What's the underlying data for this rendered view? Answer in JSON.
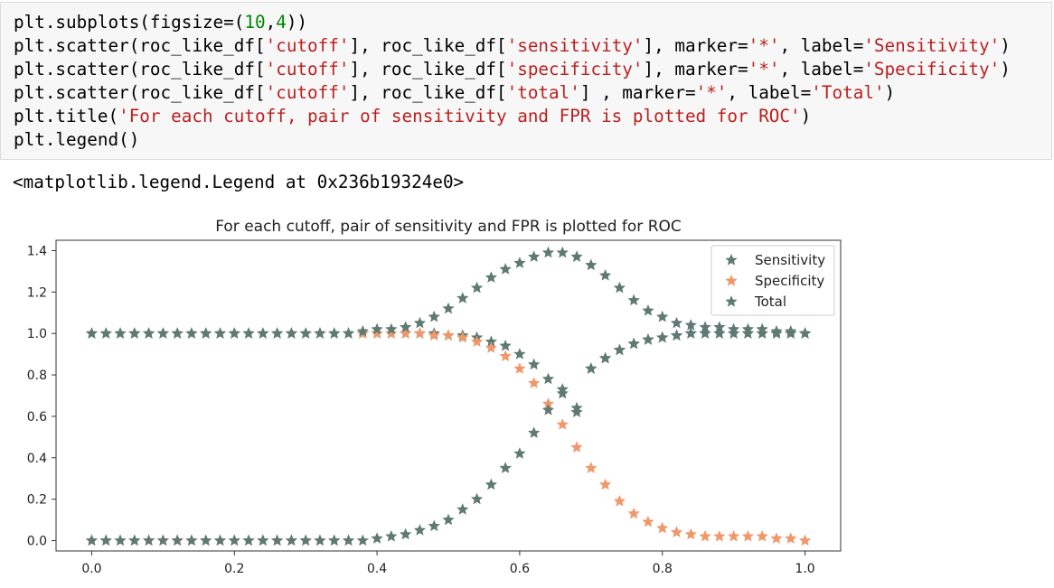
{
  "code_cell": {
    "lines": [
      [
        {
          "t": "plt.subplots(figsize=("
        },
        {
          "t": "10",
          "c": "num"
        },
        {
          "t": ","
        },
        {
          "t": "4",
          "c": "num"
        },
        {
          "t": "))"
        }
      ],
      [
        {
          "t": "plt.scatter(roc_like_df["
        },
        {
          "t": "'cutoff'",
          "c": "str"
        },
        {
          "t": "], roc_like_df["
        },
        {
          "t": "'sensitivity'",
          "c": "str"
        },
        {
          "t": "], marker="
        },
        {
          "t": "'*'",
          "c": "str"
        },
        {
          "t": ", label="
        },
        {
          "t": "'Sensitivity'",
          "c": "str"
        },
        {
          "t": ")"
        }
      ],
      [
        {
          "t": "plt.scatter(roc_like_df["
        },
        {
          "t": "'cutoff'",
          "c": "str"
        },
        {
          "t": "], roc_like_df["
        },
        {
          "t": "'specificity'",
          "c": "str"
        },
        {
          "t": "], marker="
        },
        {
          "t": "'*'",
          "c": "str"
        },
        {
          "t": ", label="
        },
        {
          "t": "'Specificity'",
          "c": "str"
        },
        {
          "t": ")"
        }
      ],
      [
        {
          "t": "plt.scatter(roc_like_df["
        },
        {
          "t": "'cutoff'",
          "c": "str"
        },
        {
          "t": "], roc_like_df["
        },
        {
          "t": "'total'",
          "c": "str"
        },
        {
          "t": "] , marker="
        },
        {
          "t": "'*'",
          "c": "str"
        },
        {
          "t": ", label="
        },
        {
          "t": "'Total'",
          "c": "str"
        },
        {
          "t": ")"
        }
      ],
      [
        {
          "t": "plt.title("
        },
        {
          "t": "'For each cutoff, pair of sensitivity and FPR is plotted for ROC'",
          "c": "str"
        },
        {
          "t": ")"
        }
      ],
      [
        {
          "t": "plt.legend()"
        }
      ]
    ]
  },
  "output": {
    "text": "<matplotlib.legend.Legend at 0x236b19324e0>"
  },
  "chart_data": {
    "type": "scatter",
    "title": "For each cutoff, pair of sensitivity and FPR is plotted for ROC",
    "xlabel": "",
    "ylabel": "",
    "xlim": [
      -0.05,
      1.05
    ],
    "ylim": [
      -0.05,
      1.45
    ],
    "xticks": [
      "0.0",
      "0.2",
      "0.4",
      "0.6",
      "0.8",
      "1.0"
    ],
    "yticks": [
      "0.0",
      "0.2",
      "0.4",
      "0.6",
      "0.8",
      "1.0",
      "1.2",
      "1.4"
    ],
    "grid": false,
    "legend_position": "top-right",
    "x": [
      0.0,
      0.02,
      0.04,
      0.06,
      0.08,
      0.1,
      0.12,
      0.14,
      0.16,
      0.18,
      0.2,
      0.22,
      0.24,
      0.26,
      0.28,
      0.3,
      0.32,
      0.34,
      0.36,
      0.38,
      0.4,
      0.42,
      0.44,
      0.46,
      0.48,
      0.5,
      0.52,
      0.54,
      0.56,
      0.58,
      0.6,
      0.62,
      0.64,
      0.66,
      0.68,
      0.7,
      0.72,
      0.74,
      0.76,
      0.78,
      0.8,
      0.82,
      0.84,
      0.86,
      0.88,
      0.9,
      0.92,
      0.94,
      0.96,
      0.98,
      1.0
    ],
    "series": [
      {
        "name": "Sensitivity",
        "color": "#5f7a73",
        "values": [
          1.0,
          1.0,
          1.0,
          1.0,
          1.0,
          1.0,
          1.0,
          1.0,
          1.0,
          1.0,
          1.0,
          1.0,
          1.0,
          1.0,
          1.0,
          1.0,
          1.0,
          1.0,
          1.0,
          1.0,
          1.0,
          1.0,
          1.0,
          1.0,
          1.0,
          0.99,
          0.99,
          0.98,
          0.96,
          0.94,
          0.9,
          0.85,
          0.78,
          0.71,
          0.64,
          0.83,
          0.88,
          0.92,
          0.95,
          0.97,
          0.98,
          0.99,
          1.0,
          1.0,
          1.0,
          1.0,
          1.0,
          1.0,
          1.0,
          1.0,
          1.0
        ]
      },
      {
        "name": "Specificity",
        "color": "#f0986a",
        "values": [
          0.0,
          0.0,
          0.0,
          0.0,
          0.0,
          0.0,
          0.0,
          0.0,
          0.0,
          0.0,
          0.0,
          0.0,
          0.0,
          0.0,
          0.0,
          0.0,
          0.0,
          0.0,
          0.0,
          1.0,
          1.0,
          1.0,
          1.0,
          1.0,
          0.99,
          0.99,
          0.98,
          0.96,
          0.93,
          0.89,
          0.83,
          0.76,
          0.66,
          0.56,
          0.45,
          0.35,
          0.27,
          0.19,
          0.13,
          0.09,
          0.06,
          0.04,
          0.03,
          0.02,
          0.02,
          0.02,
          0.02,
          0.02,
          0.01,
          0.01,
          0.0
        ]
      },
      {
        "name": "Total",
        "color": "#5f7a73",
        "values": [
          1.0,
          1.0,
          1.0,
          1.0,
          1.0,
          1.0,
          1.0,
          1.0,
          1.0,
          1.0,
          1.0,
          1.0,
          1.0,
          1.0,
          1.0,
          1.0,
          1.0,
          1.0,
          1.0,
          1.01,
          1.02,
          1.02,
          1.03,
          1.05,
          1.08,
          1.12,
          1.17,
          1.22,
          1.27,
          1.31,
          1.34,
          1.37,
          1.39,
          1.39,
          1.37,
          1.33,
          1.28,
          1.22,
          1.16,
          1.11,
          1.08,
          1.05,
          1.04,
          1.03,
          1.03,
          1.02,
          1.02,
          1.02,
          1.01,
          1.01,
          1.0
        ]
      },
      {
        "name": "",
        "color": "#5f7a73",
        "values": [
          0.0,
          0.0,
          0.0,
          0.0,
          0.0,
          0.0,
          0.0,
          0.0,
          0.0,
          0.0,
          0.0,
          0.0,
          0.0,
          0.0,
          0.0,
          0.0,
          0.0,
          0.0,
          0.0,
          0.0,
          0.01,
          0.02,
          0.03,
          0.05,
          0.07,
          0.1,
          0.15,
          0.2,
          0.27,
          0.35,
          0.42,
          0.52,
          0.63,
          0.73,
          0.62,
          0.83,
          0.88,
          0.92,
          0.95,
          0.97,
          0.98,
          0.99,
          1.0,
          1.0,
          1.0,
          1.0,
          1.0,
          1.0,
          1.0,
          1.0,
          1.0
        ]
      }
    ]
  }
}
